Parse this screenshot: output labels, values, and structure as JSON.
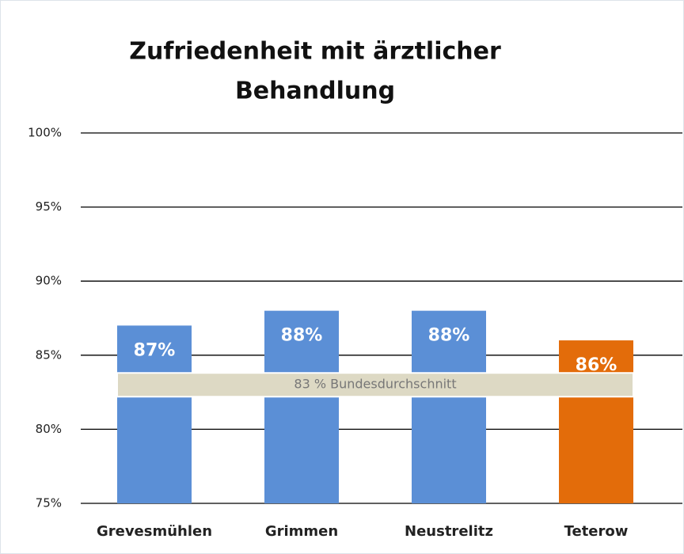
{
  "chart_data": {
    "type": "bar",
    "title": [
      "Zufriedenheit mit ärztlicher",
      "Behandlung"
    ],
    "categories": [
      "Grevesmühlen",
      "Grimmen",
      "Neustrelitz",
      "Teterow"
    ],
    "values": [
      87,
      88,
      88,
      86
    ],
    "value_labels": [
      "87%",
      "88%",
      "88%",
      "86%"
    ],
    "colors": [
      "#5b8fd6",
      "#5b8fd6",
      "#5b8fd6",
      "#e36c0a"
    ],
    "ylim": [
      75,
      100
    ],
    "yticks": [
      {
        "value": 75,
        "label": "75%"
      },
      {
        "value": 80,
        "label": "80%"
      },
      {
        "value": 85,
        "label": "85%"
      },
      {
        "value": 90,
        "label": "90%"
      },
      {
        "value": 95,
        "label": "95%"
      },
      {
        "value": 100,
        "label": "100%"
      }
    ],
    "grid": true,
    "reference": {
      "value": 83,
      "label": "83 % Bundesdurchschnitt"
    }
  }
}
